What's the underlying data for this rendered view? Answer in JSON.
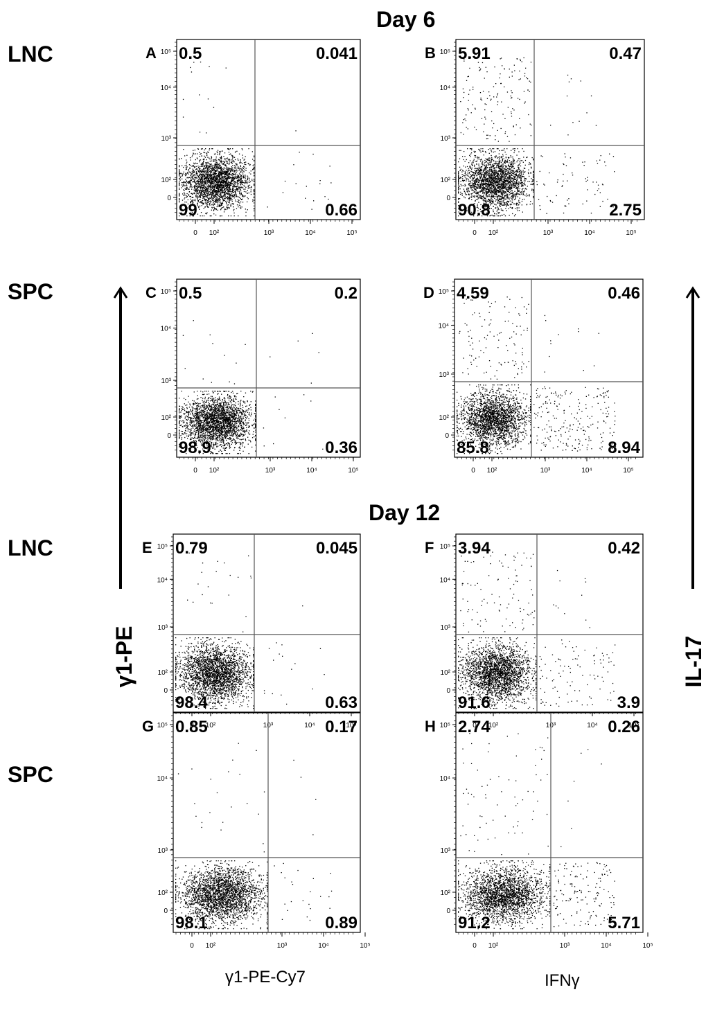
{
  "day_labels": [
    "Day 6",
    "Day 12"
  ],
  "row_labels": [
    "LNC",
    "SPC",
    "LNC",
    "SPC"
  ],
  "left_side_label": "γ1-PE",
  "right_side_label": "IL-17",
  "x_axis_titles": [
    "γ1-PE-Cy7",
    "IFNγ"
  ],
  "tick_labels": [
    "0",
    "10²",
    "10³",
    "10⁴",
    "10⁵"
  ],
  "chart_data": [
    {
      "type": "scatter",
      "panel": "A",
      "axis_scale": "biexponential",
      "quadrant_percent": {
        "upper_left": "0.5",
        "upper_right": "0.041",
        "lower_left": "99",
        "lower_right": "0.66"
      }
    },
    {
      "type": "scatter",
      "panel": "B",
      "axis_scale": "biexponential",
      "quadrant_percent": {
        "upper_left": "5.91",
        "upper_right": "0.47",
        "lower_left": "90.8",
        "lower_right": "2.75"
      }
    },
    {
      "type": "scatter",
      "panel": "C",
      "axis_scale": "biexponential",
      "quadrant_percent": {
        "upper_left": "0.5",
        "upper_right": "0.2",
        "lower_left": "98.9",
        "lower_right": "0.36"
      }
    },
    {
      "type": "scatter",
      "panel": "D",
      "axis_scale": "biexponential",
      "quadrant_percent": {
        "upper_left": "4.59",
        "upper_right": "0.46",
        "lower_left": "85.8",
        "lower_right": "8.94"
      }
    },
    {
      "type": "scatter",
      "panel": "E",
      "axis_scale": "biexponential",
      "quadrant_percent": {
        "upper_left": "0.79",
        "upper_right": "0.045",
        "lower_left": "98.4",
        "lower_right": "0.63"
      }
    },
    {
      "type": "scatter",
      "panel": "F",
      "axis_scale": "biexponential",
      "quadrant_percent": {
        "upper_left": "3.94",
        "upper_right": "0.42",
        "lower_left": "91.6",
        "lower_right": "3.9"
      }
    },
    {
      "type": "scatter",
      "panel": "G",
      "axis_scale": "biexponential",
      "quadrant_percent": {
        "upper_left": "0.85",
        "upper_right": "0.17",
        "lower_left": "98.1",
        "lower_right": "0.89"
      }
    },
    {
      "type": "scatter",
      "panel": "H",
      "axis_scale": "biexponential",
      "quadrant_percent": {
        "upper_left": "2.74",
        "upper_right": "0.26",
        "lower_left": "91.2",
        "lower_right": "5.71"
      }
    }
  ]
}
